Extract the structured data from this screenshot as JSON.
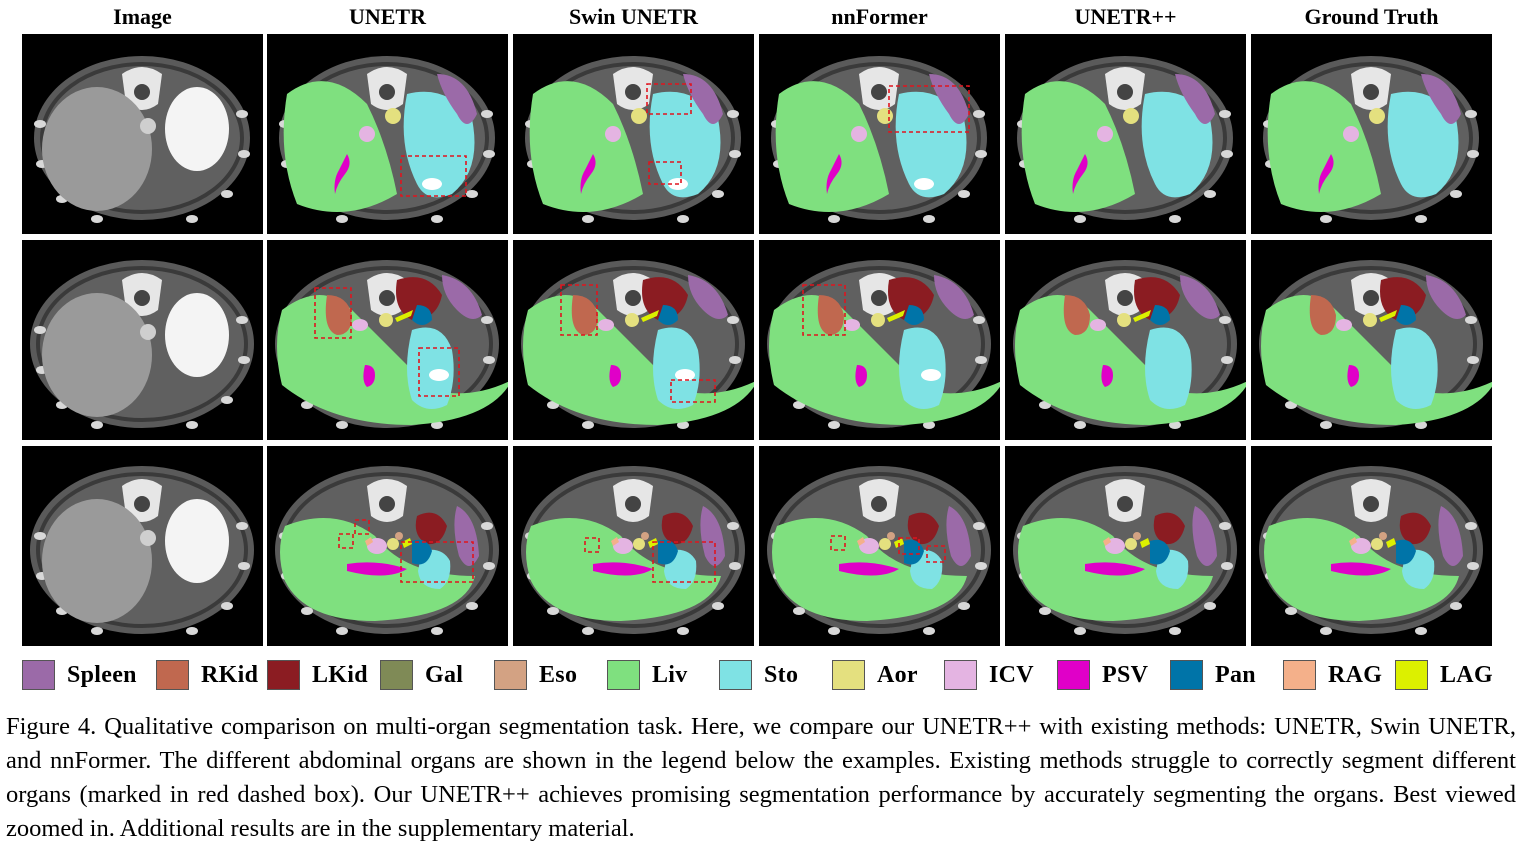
{
  "columns": [
    "Image",
    "UNETR",
    "Swin UNETR",
    "nnFormer",
    "UNETR++",
    "Ground Truth"
  ],
  "rows": 3,
  "legend": [
    {
      "label": "Spleen",
      "color": "#9b6aa8"
    },
    {
      "label": "RKid",
      "color": "#c0684f"
    },
    {
      "label": "LKid",
      "color": "#8b1c22"
    },
    {
      "label": "Gal",
      "color": "#7f8a56"
    },
    {
      "label": "Eso",
      "color": "#d3a283"
    },
    {
      "label": "Liv",
      "color": "#7fe07f"
    },
    {
      "label": "Sto",
      "color": "#7fe2e4"
    },
    {
      "label": "Aor",
      "color": "#e4e07f"
    },
    {
      "label": "ICV",
      "color": "#e4b4e2"
    },
    {
      "label": "PSV",
      "color": "#e000c8"
    },
    {
      "label": "Pan",
      "color": "#0074a8"
    },
    {
      "label": "RAG",
      "color": "#f4b08a"
    },
    {
      "label": "LAG",
      "color": "#dcf000"
    }
  ],
  "caption": "Figure 4. Qualitative comparison on multi-organ segmentation task. Here, we compare our UNETR++ with existing methods: UNETR, Swin UNETR, and nnFormer. The different abdominal organs are shown in the legend below the examples. Existing methods struggle to correctly segment different organs (marked in red dashed box). Our UNETR++ achieves promising segmentation performance by accurately segmenting the organs. Best viewed zoomed in. Additional results are in the supplementary material."
}
